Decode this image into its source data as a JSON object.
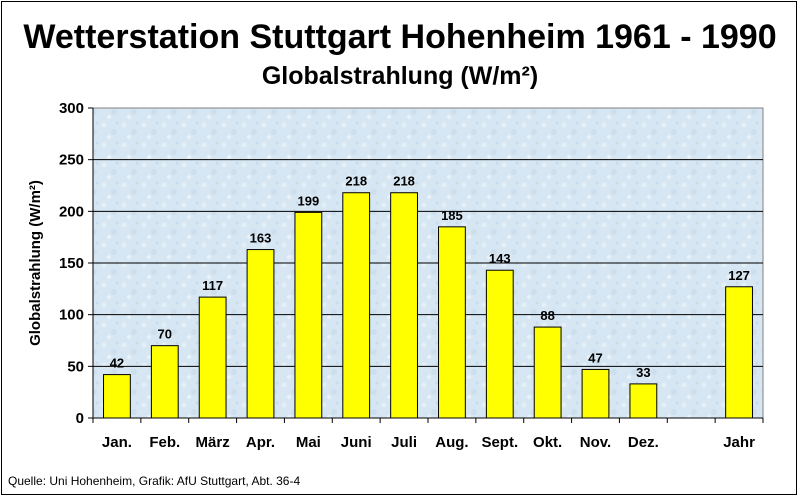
{
  "chart_data": {
    "type": "bar",
    "title": "Wetterstation Stuttgart Hohenheim 1961 - 1990",
    "subtitle": "Globalstrahlung (W/m²)",
    "xlabel": "",
    "ylabel": "Globalstrahlung (W/m²)",
    "ylim": [
      0,
      300
    ],
    "yticks": [
      0,
      50,
      100,
      150,
      200,
      250,
      300
    ],
    "categories": [
      "Jan.",
      "Feb.",
      "März",
      "Apr.",
      "Mai",
      "Juni",
      "Juli",
      "Aug.",
      "Sept.",
      "Okt.",
      "Nov.",
      "Dez.",
      "",
      "Jahr"
    ],
    "values": [
      42,
      70,
      117,
      163,
      199,
      218,
      218,
      185,
      143,
      88,
      47,
      33,
      null,
      127
    ],
    "data_labels": [
      "42",
      "70",
      "117",
      "163",
      "199",
      "218",
      "218",
      "185",
      "143",
      "88",
      "47",
      "33",
      "",
      "127"
    ],
    "grid": true,
    "legend": "none",
    "colors": {
      "bar": "#ffff00",
      "bar_stroke": "#000000",
      "plot_bg": "#d6e6f2",
      "gridline": "#000000"
    }
  },
  "source": "Quelle: Uni Hohenheim, Grafik: AfU Stuttgart, Abt. 36-4"
}
